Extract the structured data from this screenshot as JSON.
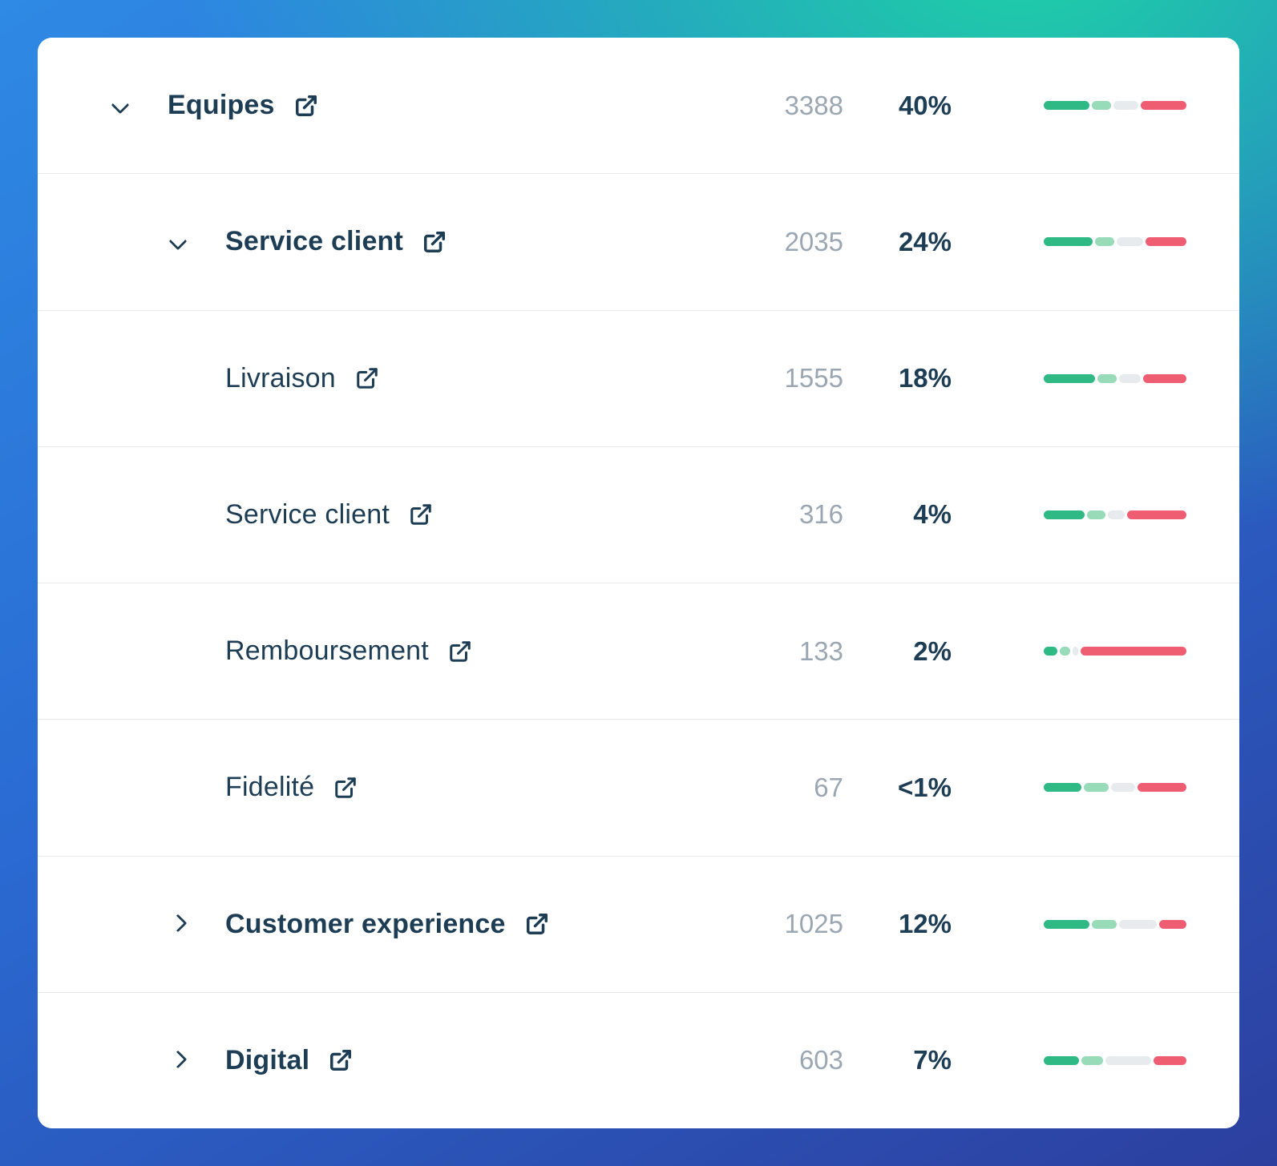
{
  "colors": {
    "bar_segments": [
      "#2fb985",
      "#97dbb9",
      "#e7ebed",
      "#ef5d73"
    ],
    "label": "#1d3d54",
    "count": "#9aa7b2",
    "card_background": "#ffffff",
    "divider": "#e7ebee"
  },
  "rows": [
    {
      "label": "Equipes",
      "chevron": "down",
      "count": "3388",
      "percent": "40%",
      "bar": [
        34,
        14,
        18,
        34
      ]
    },
    {
      "label": "Service client",
      "chevron": "down",
      "count": "2035",
      "percent": "24%",
      "bar": [
        36,
        14,
        20,
        30
      ]
    },
    {
      "label": "Livraison",
      "chevron": "none",
      "count": "1555",
      "percent": "18%",
      "bar": [
        38,
        14,
        16,
        32
      ]
    },
    {
      "label": "Service client",
      "chevron": "none",
      "count": "316",
      "percent": "4%",
      "bar": [
        30,
        14,
        12,
        44
      ]
    },
    {
      "label": "Remboursement",
      "chevron": "none",
      "count": "133",
      "percent": "2%",
      "bar": [
        10,
        8,
        4,
        78
      ]
    },
    {
      "label": "Fidelité",
      "chevron": "none",
      "count": "67",
      "percent": "<1%",
      "bar": [
        28,
        18,
        18,
        36
      ]
    },
    {
      "label": "Customer experience",
      "chevron": "right",
      "count": "1025",
      "percent": "12%",
      "bar": [
        34,
        18,
        28,
        20
      ]
    },
    {
      "label": "Digital",
      "chevron": "right",
      "count": "603",
      "percent": "7%",
      "bar": [
        26,
        16,
        34,
        24
      ]
    }
  ]
}
